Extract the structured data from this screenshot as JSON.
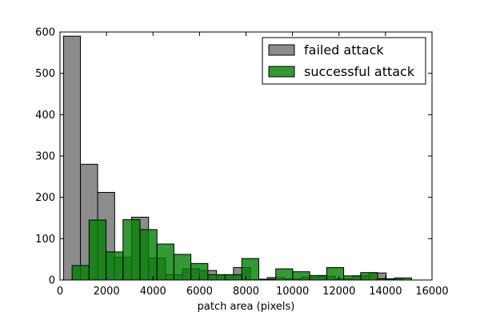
{
  "chart_data": {
    "type": "bar",
    "title": "",
    "xlabel": "patch area (pixels)",
    "ylabel": "",
    "xlim": [
      0,
      16000
    ],
    "ylim": [
      0,
      600
    ],
    "xticks": [
      "0",
      "2000",
      "4000",
      "6000",
      "8000",
      "10000",
      "12000",
      "14000",
      "16000"
    ],
    "yticks": [
      "0",
      "100",
      "200",
      "300",
      "400",
      "500",
      "600"
    ],
    "legend_position": "top-right",
    "series": [
      {
        "name": "failed attack",
        "color": "#808080",
        "bins": [
          {
            "x0": 150,
            "x1": 880,
            "value": 590
          },
          {
            "x0": 880,
            "x1": 1620,
            "value": 280
          },
          {
            "x0": 1620,
            "x1": 2350,
            "value": 212
          },
          {
            "x0": 2350,
            "x1": 3080,
            "value": 55
          },
          {
            "x0": 3080,
            "x1": 3810,
            "value": 152
          },
          {
            "x0": 3810,
            "x1": 4540,
            "value": 53
          },
          {
            "x0": 4540,
            "x1": 5270,
            "value": 13
          },
          {
            "x0": 5270,
            "x1": 6000,
            "value": 27
          },
          {
            "x0": 6000,
            "x1": 6730,
            "value": 23
          },
          {
            "x0": 6730,
            "x1": 7460,
            "value": 12
          },
          {
            "x0": 7460,
            "x1": 8190,
            "value": 30
          },
          {
            "x0": 8190,
            "x1": 8920,
            "value": 1
          },
          {
            "x0": 8920,
            "x1": 9650,
            "value": 6
          },
          {
            "x0": 9650,
            "x1": 10380,
            "value": 3
          },
          {
            "x0": 10380,
            "x1": 11110,
            "value": 7
          },
          {
            "x0": 11110,
            "x1": 11840,
            "value": 9
          },
          {
            "x0": 11840,
            "x1": 12570,
            "value": 3
          },
          {
            "x0": 12570,
            "x1": 13300,
            "value": 10
          },
          {
            "x0": 13300,
            "x1": 14030,
            "value": 17
          },
          {
            "x0": 14030,
            "x1": 14760,
            "value": 2
          }
        ]
      },
      {
        "name": "successful attack",
        "color": "#008000",
        "bins": [
          {
            "x0": 520,
            "x1": 1250,
            "value": 35
          },
          {
            "x0": 1250,
            "x1": 1980,
            "value": 145
          },
          {
            "x0": 1980,
            "x1": 2710,
            "value": 68
          },
          {
            "x0": 2710,
            "x1": 3440,
            "value": 146
          },
          {
            "x0": 3440,
            "x1": 4170,
            "value": 122
          },
          {
            "x0": 4170,
            "x1": 4900,
            "value": 87
          },
          {
            "x0": 4900,
            "x1": 5630,
            "value": 62
          },
          {
            "x0": 5630,
            "x1": 6360,
            "value": 40
          },
          {
            "x0": 6360,
            "x1": 7090,
            "value": 13
          },
          {
            "x0": 7090,
            "x1": 7820,
            "value": 13
          },
          {
            "x0": 7820,
            "x1": 8550,
            "value": 52
          },
          {
            "x0": 8550,
            "x1": 9280,
            "value": 2
          },
          {
            "x0": 9280,
            "x1": 10010,
            "value": 27
          },
          {
            "x0": 10010,
            "x1": 10740,
            "value": 20
          },
          {
            "x0": 10740,
            "x1": 11470,
            "value": 11
          },
          {
            "x0": 11470,
            "x1": 12200,
            "value": 30
          },
          {
            "x0": 12200,
            "x1": 12930,
            "value": 10
          },
          {
            "x0": 12930,
            "x1": 13660,
            "value": 18
          },
          {
            "x0": 13660,
            "x1": 14390,
            "value": 3
          },
          {
            "x0": 14390,
            "x1": 15120,
            "value": 5
          }
        ]
      }
    ]
  }
}
